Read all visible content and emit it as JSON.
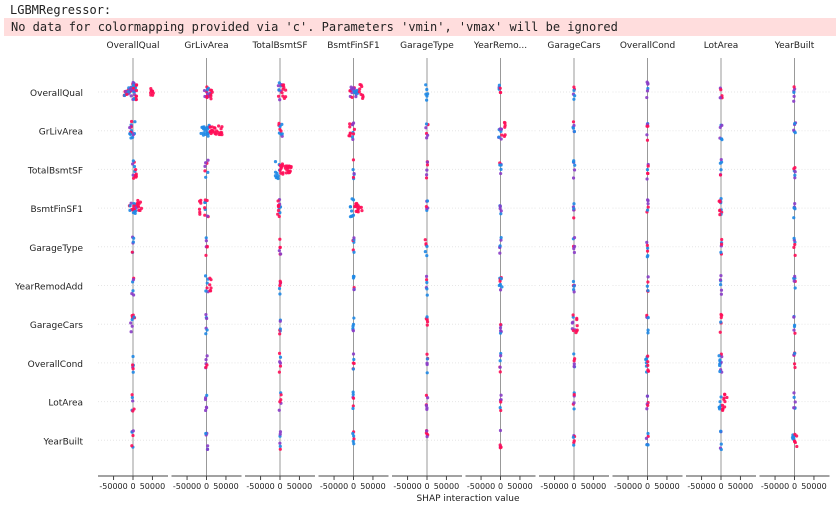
{
  "output_label": "LGBMRegressor:",
  "warning": "No data for colormapping provided via 'c'. Parameters 'vmin', 'vmax' will be ignored",
  "colors": {
    "low": "#1e88e5",
    "high": "#ff0d57",
    "mid": "#8a3cc8",
    "axis": "#444444",
    "grid": "#cccccc"
  },
  "chart_data": {
    "type": "scatter",
    "subtype": "shap-interaction-summary",
    "xlabel": "SHAP interaction value",
    "xlim": [
      -90000,
      90000
    ],
    "tick_values": [
      -50000,
      0,
      50000
    ],
    "tick_labels": [
      "-50000",
      "0",
      "50000"
    ],
    "features": [
      "OverallQual",
      "GrLivArea",
      "TotalBsmtSF",
      "BsmtFinSF1",
      "GarageType",
      "YearRemodAdd",
      "GarageCars",
      "OverallCond",
      "LotArea",
      "YearBuilt"
    ],
    "column_titles": [
      "OverallQual",
      "GrLivArea",
      "TotalBsmtSF",
      "BsmtFinSF1",
      "GarageType",
      "YearRemo...",
      "GarageCars",
      "OverallCond",
      "LotArea",
      "YearBuilt"
    ],
    "spread": [
      [
        [
          -24000,
          5000,
          "mix"
        ],
        [
          -7000,
          8000,
          "mix"
        ],
        [
          0,
          5000,
          "mix"
        ],
        [
          8000,
          10000,
          "high"
        ],
        [
          45000,
          55000,
          "high"
        ]
      ],
      [
        [
          -6000,
          10000,
          "mix"
        ],
        [
          10000,
          15000,
          "high"
        ]
      ],
      [
        [
          -5000,
          5000,
          "mix"
        ],
        [
          5000,
          15000,
          "high"
        ]
      ],
      [
        [
          -12000,
          12000,
          "mix"
        ],
        [
          15000,
          25000,
          "high"
        ]
      ],
      [
        [
          -5000,
          2000,
          "mix"
        ]
      ],
      [
        [
          -4000,
          4000,
          "mix"
        ]
      ],
      [
        [
          -3000,
          3000,
          "mix"
        ]
      ],
      [
        [
          -2000,
          2000,
          "mix"
        ]
      ],
      [
        [
          -3000,
          3000,
          "mix"
        ]
      ],
      [
        [
          -2000,
          2000,
          "mix"
        ]
      ],
      [
        [
          -5000,
          5000,
          "mix"
        ],
        [
          -9000,
          -5000,
          "mix"
        ]
      ],
      [
        [
          -15000,
          8000,
          "low"
        ],
        [
          8000,
          28000,
          "high"
        ],
        [
          28000,
          40000,
          "high"
        ]
      ],
      [
        [
          -4000,
          8000,
          "mix"
        ]
      ],
      [
        [
          -4000,
          6000,
          "mix"
        ],
        [
          -14000,
          -8000,
          "high"
        ]
      ],
      [
        [
          -3000,
          3000,
          "mix"
        ]
      ],
      [
        [
          -6000,
          4000,
          "mix"
        ],
        [
          10000,
          12000,
          "high"
        ]
      ],
      [
        [
          -3000,
          3000,
          "mix"
        ]
      ],
      [
        [
          -2000,
          2000,
          "mix"
        ]
      ],
      [
        [
          -3000,
          3000,
          "mix"
        ]
      ],
      [
        [
          -3000,
          3000,
          "mix"
        ]
      ],
      [
        [
          -3000,
          6000,
          "mix"
        ],
        [
          6000,
          9000,
          "high"
        ]
      ],
      [
        [
          -4000,
          4000,
          "mix"
        ]
      ],
      [
        [
          -12000,
          0,
          "low"
        ],
        [
          0,
          30000,
          "high"
        ]
      ],
      [
        [
          -2000,
          2000,
          "mix"
        ]
      ],
      [
        [
          -2000,
          2000,
          "mix"
        ]
      ],
      [
        [
          -2000,
          2000,
          "mix"
        ]
      ],
      [
        [
          -2000,
          2000,
          "mix"
        ]
      ],
      [
        [
          -2000,
          2000,
          "mix"
        ]
      ],
      [
        [
          -2000,
          2000,
          "mix"
        ]
      ],
      [
        [
          -2000,
          2000,
          "mix"
        ]
      ],
      [
        [
          -12000,
          12000,
          "mix"
        ],
        [
          12000,
          22000,
          "high"
        ]
      ],
      [
        [
          -5000,
          5000,
          "mix"
        ],
        [
          -18000,
          -14000,
          "high"
        ]
      ],
      [
        [
          -3000,
          3000,
          "mix"
        ],
        [
          -6000,
          -3000,
          "high"
        ]
      ],
      [
        [
          -8000,
          2000,
          "low"
        ],
        [
          2000,
          22000,
          "high"
        ]
      ],
      [
        [
          -2000,
          2000,
          "mix"
        ]
      ],
      [
        [
          -2000,
          2000,
          "mix"
        ]
      ],
      [
        [
          -2000,
          2000,
          "mix"
        ]
      ],
      [
        [
          -2000,
          2000,
          "mix"
        ]
      ],
      [
        [
          -2000,
          2000,
          "mix"
        ],
        [
          -5000,
          -2000,
          "high"
        ]
      ],
      [
        [
          -2000,
          2000,
          "mix"
        ]
      ],
      [
        [
          -2000,
          2000,
          "mix"
        ]
      ],
      [
        [
          -2000,
          2000,
          "mix"
        ]
      ],
      [
        [
          -2000,
          2000,
          "mix"
        ]
      ],
      [
        [
          -2000,
          2000,
          "mix"
        ]
      ],
      [
        [
          -6000,
          0,
          "mix"
        ]
      ],
      [
        [
          -2000,
          2000,
          "mix"
        ]
      ],
      [
        [
          -2000,
          2000,
          "mix"
        ]
      ],
      [
        [
          -2000,
          2000,
          "mix"
        ]
      ],
      [
        [
          -2000,
          2000,
          "mix"
        ]
      ],
      [
        [
          -2000,
          2000,
          "mix"
        ]
      ],
      [
        [
          -3000,
          3000,
          "mix"
        ]
      ],
      [
        [
          -3000,
          4000,
          "mix"
        ],
        [
          8000,
          12000,
          "high"
        ]
      ],
      [
        [
          -2000,
          2000,
          "mix"
        ]
      ],
      [
        [
          -2000,
          2000,
          "mix"
        ]
      ],
      [
        [
          -2000,
          2000,
          "mix"
        ]
      ],
      [
        [
          -5000,
          5000,
          "mix"
        ]
      ],
      [
        [
          -2000,
          2000,
          "mix"
        ]
      ],
      [
        [
          -2000,
          2000,
          "mix"
        ]
      ],
      [
        [
          -2000,
          2000,
          "mix"
        ]
      ],
      [
        [
          -2000,
          2000,
          "mix"
        ]
      ],
      [
        [
          -6000,
          4000,
          "mix"
        ]
      ],
      [
        [
          -2000,
          2000,
          "mix"
        ]
      ],
      [
        [
          -2000,
          2000,
          "mix"
        ]
      ],
      [
        [
          -2000,
          2000,
          "mix"
        ]
      ],
      [
        [
          -2000,
          2000,
          "mix"
        ]
      ],
      [
        [
          -2000,
          2000,
          "mix"
        ]
      ],
      [
        [
          -5000,
          3000,
          "mix"
        ],
        [
          5000,
          9000,
          "high"
        ]
      ],
      [
        [
          -2000,
          2000,
          "mix"
        ]
      ],
      [
        [
          -2000,
          2000,
          "mix"
        ]
      ],
      [
        [
          -2000,
          2000,
          "mix"
        ]
      ],
      [
        [
          -2000,
          2000,
          "mix"
        ]
      ],
      [
        [
          -2000,
          2000,
          "mix"
        ]
      ],
      [
        [
          -2000,
          2000,
          "mix"
        ]
      ],
      [
        [
          -2000,
          2000,
          "mix"
        ]
      ],
      [
        [
          -2000,
          2000,
          "mix"
        ]
      ],
      [
        [
          -2000,
          2000,
          "mix"
        ]
      ],
      [
        [
          -2000,
          2000,
          "mix"
        ]
      ],
      [
        [
          -5000,
          0,
          "low"
        ],
        [
          0,
          5000,
          "high"
        ]
      ],
      [
        [
          -2000,
          2000,
          "mix"
        ],
        [
          -5000,
          -2000,
          "low"
        ]
      ],
      [
        [
          -3000,
          3000,
          "mix"
        ]
      ],
      [
        [
          -3000,
          3000,
          "mix"
        ]
      ],
      [
        [
          -3000,
          3000,
          "mix"
        ]
      ],
      [
        [
          -3000,
          3000,
          "mix"
        ]
      ],
      [
        [
          -2000,
          2000,
          "mix"
        ]
      ],
      [
        [
          -2000,
          2000,
          "mix"
        ]
      ],
      [
        [
          -2000,
          2000,
          "mix"
        ]
      ],
      [
        [
          -2000,
          2000,
          "mix"
        ]
      ],
      [
        [
          -2000,
          2000,
          "mix"
        ]
      ],
      [
        [
          -5000,
          2000,
          "low"
        ],
        [
          2000,
          16000,
          "high"
        ]
      ],
      [
        [
          -2000,
          2000,
          "mix"
        ]
      ],
      [
        [
          -3000,
          3000,
          "mix"
        ]
      ],
      [
        [
          -3000,
          3000,
          "mix"
        ]
      ],
      [
        [
          -2000,
          2000,
          "mix"
        ]
      ],
      [
        [
          -2000,
          2000,
          "mix"
        ]
      ],
      [
        [
          -2000,
          2000,
          "mix"
        ]
      ],
      [
        [
          -2000,
          2000,
          "mix"
        ]
      ],
      [
        [
          -2000,
          2000,
          "mix"
        ]
      ],
      [
        [
          -3000,
          3000,
          "mix"
        ]
      ],
      [
        [
          -2000,
          2000,
          "mix"
        ]
      ],
      [
        [
          -7000,
          0,
          "low"
        ],
        [
          0,
          7000,
          "high"
        ]
      ]
    ]
  }
}
